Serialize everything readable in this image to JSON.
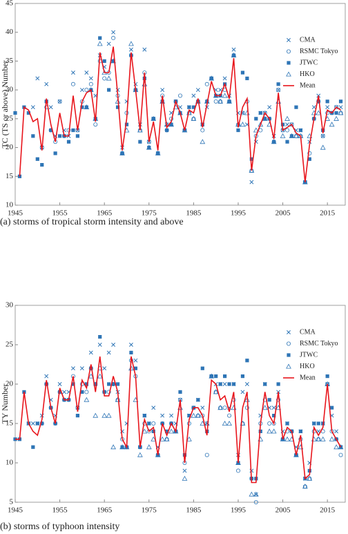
{
  "chart_data": [
    {
      "type": "line",
      "caption": "(a) storms of tropical storm intensity and above",
      "y_label": "TC (TS or above) Number",
      "x": [
        1945,
        1946,
        1947,
        1948,
        1949,
        1950,
        1951,
        1952,
        1953,
        1954,
        1955,
        1956,
        1957,
        1958,
        1959,
        1960,
        1961,
        1962,
        1963,
        1964,
        1965,
        1966,
        1967,
        1968,
        1969,
        1970,
        1971,
        1972,
        1973,
        1974,
        1975,
        1976,
        1977,
        1978,
        1979,
        1980,
        1981,
        1982,
        1983,
        1984,
        1985,
        1986,
        1987,
        1988,
        1989,
        1990,
        1991,
        1992,
        1993,
        1994,
        1995,
        1996,
        1997,
        1998,
        1999,
        2000,
        2001,
        2002,
        2003,
        2004,
        2005,
        2006,
        2007,
        2008,
        2009,
        2010,
        2011,
        2012,
        2013,
        2014,
        2015,
        2016,
        2017,
        2018
      ],
      "xlim": [
        1945,
        2019
      ],
      "xticks": [
        1945,
        1955,
        1965,
        1975,
        1985,
        1995,
        2005,
        2015
      ],
      "ylim": [
        10,
        45
      ],
      "yticks": [
        10,
        15,
        20,
        25,
        30,
        35,
        40,
        45
      ],
      "series": [
        {
          "name": "CMA",
          "marker": "x",
          "color": "#2e75b6",
          "values": [
            null,
            null,
            null,
            null,
            27,
            32,
            20,
            31,
            27,
            22,
            28,
            23,
            22,
            33,
            23,
            30,
            33,
            32,
            29,
            36,
            34,
            38,
            40,
            30,
            20,
            28,
            37,
            31,
            24,
            37,
            21,
            25,
            19,
            30,
            24,
            26,
            28,
            27,
            23,
            27,
            29,
            30,
            24,
            27,
            32,
            30,
            30,
            32,
            29,
            37,
            26,
            26,
            24,
            14,
            21,
            26,
            26,
            27,
            22,
            30,
            23,
            24,
            24,
            23,
            23,
            14,
            21,
            27,
            29,
            22,
            27,
            26,
            27,
            27
          ]
        },
        {
          "name": "RSMC Tokyo",
          "marker": "circle",
          "color": "#2e75b6",
          "values": [
            null,
            null,
            null,
            null,
            null,
            null,
            20,
            27,
            23,
            21,
            28,
            22,
            23,
            31,
            23,
            28,
            30,
            31,
            24,
            35,
            32,
            33,
            39,
            29,
            19,
            26,
            36,
            30,
            23,
            33,
            21,
            25,
            19,
            29,
            23,
            25,
            28,
            29,
            23,
            26,
            25,
            28,
            23,
            31,
            32,
            28,
            28,
            30,
            28,
            36,
            24,
            26,
            28,
            16,
            22,
            23,
            26,
            25,
            21,
            30,
            23,
            23,
            24,
            22,
            22,
            14,
            19,
            25,
            28,
            22,
            26,
            26,
            27,
            26
          ]
        },
        {
          "name": "JTWC",
          "marker": "square",
          "color": "#2e75b6",
          "values": [
            26,
            15,
            27,
            26,
            22,
            18,
            17,
            28,
            23,
            19,
            22,
            22,
            21,
            23,
            22,
            27,
            27,
            30,
            25,
            39,
            35,
            30,
            35,
            27,
            19,
            24,
            36,
            30,
            21,
            32,
            20,
            25,
            19,
            28,
            23,
            24,
            28,
            26,
            23,
            27,
            27,
            28,
            24,
            28,
            32,
            29,
            29,
            31,
            28,
            36,
            23,
            33,
            32,
            18,
            25,
            26,
            25,
            25,
            21,
            31,
            24,
            21,
            22,
            27,
            23,
            14,
            18,
            25,
            28,
            23,
            28,
            26,
            26,
            28
          ]
        },
        {
          "name": "HKO",
          "marker": "triangle",
          "color": "#2e75b6",
          "values": [
            null,
            null,
            null,
            null,
            null,
            null,
            null,
            null,
            null,
            null,
            null,
            null,
            null,
            null,
            null,
            null,
            27,
            30,
            25,
            38,
            33,
            32,
            35,
            28,
            19,
            23,
            38,
            30,
            23,
            31,
            20,
            25,
            19,
            28,
            24,
            24,
            27,
            26,
            23,
            26,
            25,
            28,
            21,
            28,
            32,
            29,
            28,
            29,
            28,
            36,
            24,
            24,
            26,
            16,
            23,
            24,
            25,
            24,
            21,
            28,
            22,
            25,
            22,
            22,
            22,
            14,
            22,
            26,
            26,
            20,
            25,
            24,
            25,
            26
          ]
        },
        {
          "name": "Mean",
          "marker": "line",
          "color": "#e8141b",
          "values": [
            null,
            15,
            27,
            26.5,
            24.5,
            25,
            19.5,
            28.5,
            24,
            21,
            26,
            22,
            22,
            29,
            23,
            28,
            29.5,
            30,
            24.5,
            36.5,
            33,
            33,
            37.5,
            29,
            19.5,
            25,
            36.5,
            30,
            23,
            33,
            21,
            24.5,
            19.5,
            29,
            23.5,
            24.5,
            28,
            26,
            23,
            26.5,
            26,
            28.5,
            23.5,
            27.5,
            31.5,
            29,
            29,
            31,
            28.5,
            35.5,
            23.5,
            27,
            28.5,
            16,
            22,
            24,
            26,
            25,
            21.5,
            29.5,
            23,
            23.5,
            24,
            22.5,
            22,
            14,
            20.5,
            25,
            29,
            22.5,
            26.5,
            26,
            27,
            26.5
          ]
        }
      ]
    },
    {
      "type": "line",
      "caption": "(b) storms of typhoon intensity",
      "y_label": "TY Number",
      "x": [
        1945,
        1946,
        1947,
        1948,
        1949,
        1950,
        1951,
        1952,
        1953,
        1954,
        1955,
        1956,
        1957,
        1958,
        1959,
        1960,
        1961,
        1962,
        1963,
        1964,
        1965,
        1966,
        1967,
        1968,
        1969,
        1970,
        1971,
        1972,
        1973,
        1974,
        1975,
        1976,
        1977,
        1978,
        1979,
        1980,
        1981,
        1982,
        1983,
        1984,
        1985,
        1986,
        1987,
        1988,
        1989,
        1990,
        1991,
        1992,
        1993,
        1994,
        1995,
        1996,
        1997,
        1998,
        1999,
        2000,
        2001,
        2002,
        2003,
        2004,
        2005,
        2006,
        2007,
        2008,
        2009,
        2010,
        2011,
        2012,
        2013,
        2014,
        2015,
        2016,
        2017,
        2018
      ],
      "xlim": [
        1945,
        2019
      ],
      "xticks": [
        1945,
        1955,
        1965,
        1975,
        1985,
        1995,
        2005,
        2015
      ],
      "ylim": [
        5,
        30
      ],
      "yticks": [
        5,
        10,
        15,
        20,
        25,
        30
      ],
      "series": [
        {
          "name": "CMA",
          "marker": "x",
          "color": "#2e75b6",
          "values": [
            null,
            null,
            null,
            15,
            15,
            15,
            16,
            21,
            18,
            16,
            20,
            19,
            19,
            22,
            17,
            22,
            20,
            24,
            20,
            25,
            22,
            24,
            25,
            19,
            14,
            15,
            25,
            23,
            12,
            16,
            15,
            17,
            12,
            16,
            14,
            16,
            15,
            18,
            9,
            16,
            17,
            18,
            17,
            15,
            21,
            20,
            20,
            20,
            17,
            20,
            11,
            19,
            20,
            9,
            6,
            16,
            20,
            17,
            17,
            19,
            14,
            15,
            14,
            12,
            14,
            8,
            10,
            15,
            14,
            15,
            20,
            16,
            14,
            12
          ]
        },
        {
          "name": "RSMC Tokyo",
          "marker": "circle",
          "color": "#2e75b6",
          "values": [
            null,
            null,
            null,
            null,
            null,
            null,
            15,
            20,
            17,
            15,
            19,
            18,
            18,
            21,
            17,
            20,
            19,
            22,
            20,
            22,
            19,
            19,
            20,
            18,
            13,
            12,
            23,
            21,
            12,
            15,
            14,
            15,
            11,
            15,
            13,
            15,
            14,
            18,
            10,
            15,
            17,
            16,
            16,
            11,
            21,
            19,
            17,
            17,
            16,
            18,
            9,
            15,
            17,
            8,
            5,
            15,
            18,
            15,
            15,
            18,
            13,
            14,
            14,
            11,
            13,
            7,
            8,
            14,
            13,
            14,
            20,
            14,
            13,
            11
          ]
        },
        {
          "name": "JTWC",
          "marker": "square",
          "color": "#2e75b6",
          "values": [
            13,
            13,
            19,
            15,
            12,
            15,
            15,
            20,
            17,
            15,
            19,
            18,
            18,
            20,
            16,
            19,
            20,
            22,
            20,
            26,
            19,
            20,
            20,
            20,
            12,
            12,
            24,
            22,
            12,
            16,
            15,
            14,
            11,
            15,
            14,
            15,
            14,
            19,
            11,
            16,
            17,
            18,
            22,
            14,
            21,
            21,
            20,
            21,
            20,
            20,
            10,
            21,
            23,
            8,
            8,
            14,
            20,
            18,
            16,
            20,
            13,
            15,
            14,
            11,
            14,
            8,
            9,
            15,
            15,
            15,
            21,
            17,
            13,
            12
          ]
        },
        {
          "name": "HKO",
          "marker": "triangle",
          "color": "#2e75b6",
          "values": [
            null,
            null,
            null,
            null,
            null,
            null,
            null,
            null,
            null,
            null,
            null,
            null,
            null,
            null,
            null,
            null,
            18,
            21,
            16,
            21,
            16,
            16,
            12,
            18,
            12,
            12,
            22,
            18,
            11,
            14,
            12,
            13,
            11,
            13,
            13,
            14,
            14,
            17,
            8,
            13,
            16,
            16,
            15,
            15,
            21,
            19,
            17,
            15,
            15,
            17,
            10,
            15,
            18,
            6,
            6,
            13,
            17,
            14,
            14,
            17,
            13,
            13,
            13,
            11,
            12,
            7,
            8,
            13,
            13,
            13,
            20,
            13,
            12,
            12
          ]
        },
        {
          "name": "Mean",
          "marker": "line",
          "color": "#e8141b",
          "values": [
            13,
            13,
            19,
            15,
            14,
            13.5,
            15.5,
            20.5,
            17,
            15,
            19.5,
            18,
            18,
            21,
            16.5,
            20.5,
            19.5,
            22.5,
            19,
            23.5,
            18.5,
            18.5,
            21,
            19,
            13,
            12,
            23.5,
            21,
            12,
            15.5,
            14,
            14.5,
            11,
            15,
            13.5,
            15,
            14,
            18,
            10,
            15.5,
            17,
            17,
            16,
            13.5,
            20.5,
            20,
            18,
            18.5,
            16.5,
            19,
            10,
            17,
            19,
            7.5,
            7.5,
            15,
            19,
            16,
            15,
            19,
            13,
            14.5,
            14,
            11,
            13.5,
            8,
            8.5,
            14.5,
            13.5,
            14.5,
            20,
            14,
            13,
            12
          ]
        }
      ]
    }
  ]
}
